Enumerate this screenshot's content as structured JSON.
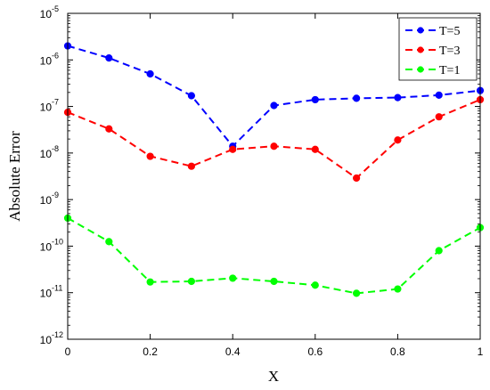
{
  "chart_data": {
    "type": "line",
    "xlabel": "X",
    "ylabel": "Absolute Error",
    "xlim": [
      0,
      1
    ],
    "ylim": [
      1e-12,
      1e-05
    ],
    "y_scale": "log",
    "grid": false,
    "legend_position": "top-right",
    "x_ticks": [
      "0",
      "0.2",
      "0.4",
      "0.6",
      "0.8",
      "1"
    ],
    "y_tick_base": "10",
    "y_tick_exponents": [
      "-12",
      "-11",
      "-10",
      "-9",
      "-8",
      "-7",
      "-6",
      "-5"
    ],
    "x": [
      0,
      0.1,
      0.2,
      0.3,
      0.4,
      0.5,
      0.6,
      0.7,
      0.8,
      0.9,
      1.0
    ],
    "series": [
      {
        "name": "T=5",
        "color": "#0000ff",
        "values": [
          2e-06,
          1.1e-06,
          5e-07,
          1.7e-07,
          1.4e-08,
          1.05e-07,
          1.4e-07,
          1.5e-07,
          1.55e-07,
          1.75e-07,
          2.2e-07
        ]
      },
      {
        "name": "T=3",
        "color": "#ff0000",
        "values": [
          7.5e-08,
          3.3e-08,
          8.5e-09,
          5.2e-09,
          1.2e-08,
          1.4e-08,
          1.2e-08,
          2.9e-09,
          1.9e-08,
          6e-08,
          1.4e-07
        ]
      },
      {
        "name": "T=1",
        "color": "#00ff00",
        "values": [
          4e-10,
          1.25e-10,
          1.7e-11,
          1.75e-11,
          2.05e-11,
          1.75e-11,
          1.45e-11,
          9.7e-12,
          1.2e-11,
          8e-11,
          2.5e-10
        ]
      }
    ]
  }
}
